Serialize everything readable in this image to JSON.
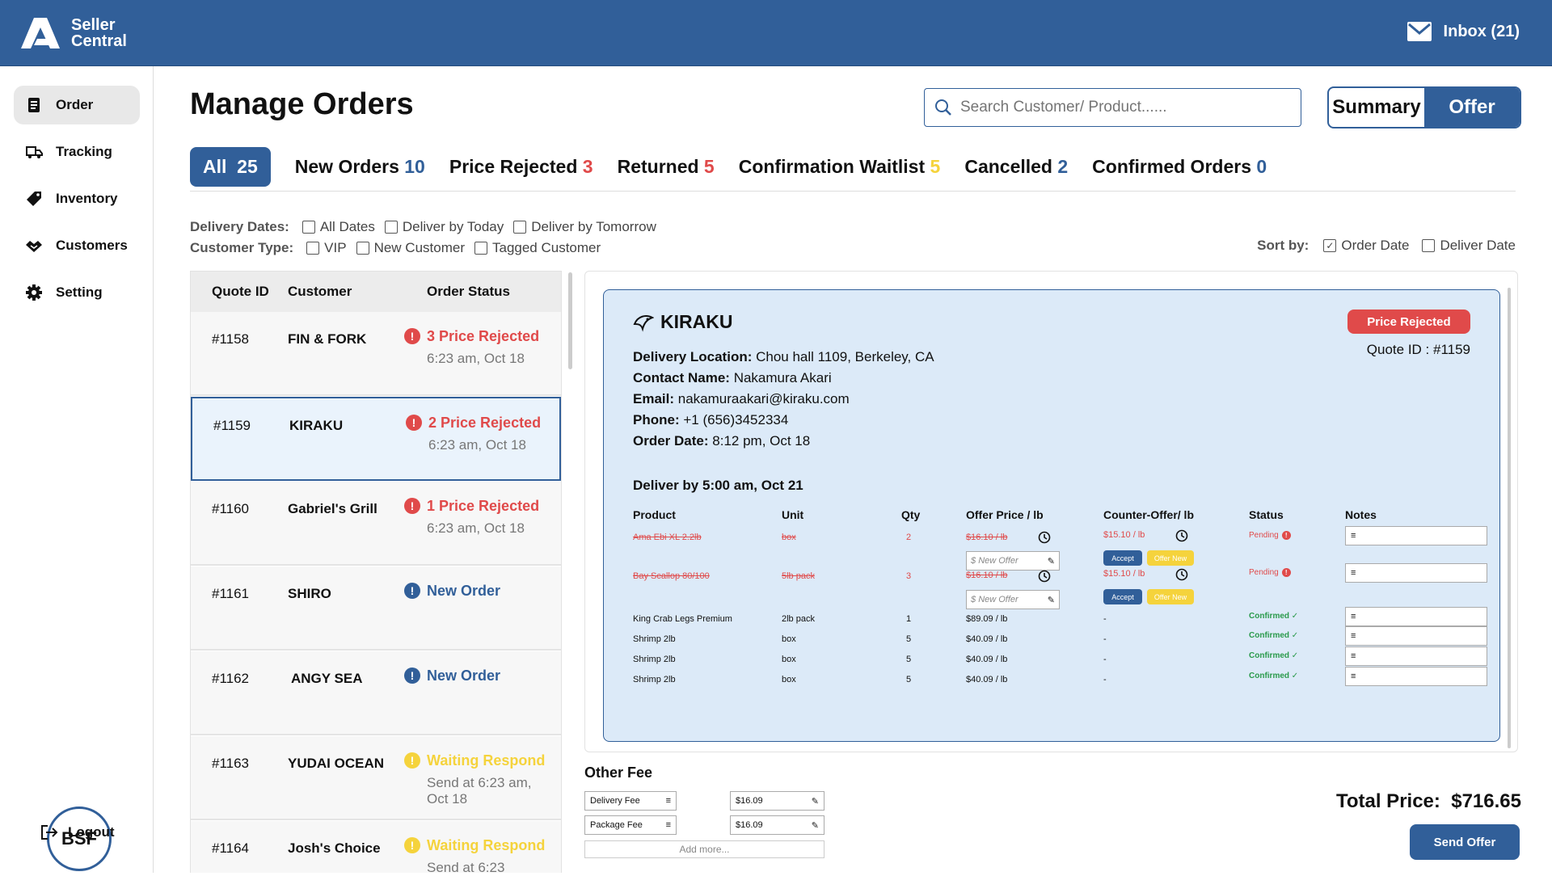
{
  "header": {
    "logo_line1": "Seller",
    "logo_line2": "Central",
    "inbox_label": "Inbox (21)"
  },
  "sidebar": {
    "items": [
      {
        "label": "Order",
        "icon": "document-icon"
      },
      {
        "label": "Tracking",
        "icon": "truck-icon"
      },
      {
        "label": "Inventory",
        "icon": "tag-icon"
      },
      {
        "label": "Customers",
        "icon": "handshake-icon"
      },
      {
        "label": "Setting",
        "icon": "gear-icon"
      }
    ],
    "avatar": "BSF",
    "logout": "Logout"
  },
  "page": {
    "title": "Manage Orders",
    "search_placeholder": "Search Customer/ Product......",
    "seg_summary": "Summary",
    "seg_offer": "Offer"
  },
  "tabs": [
    {
      "label": "All",
      "count": "25",
      "color": "#ffffff"
    },
    {
      "label": "New Orders",
      "count": "10",
      "color": "#315f99"
    },
    {
      "label": "Price Rejected",
      "count": "3",
      "color": "#e04a4a"
    },
    {
      "label": "Returned",
      "count": "5",
      "color": "#e04a4a"
    },
    {
      "label": "Confirmation Waitlist",
      "count": "5",
      "color": "#f5d33c"
    },
    {
      "label": "Cancelled",
      "count": "2",
      "color": "#315f99"
    },
    {
      "label": "Confirmed Orders",
      "count": "0",
      "color": "#315f99"
    }
  ],
  "filters": {
    "delivery_label": "Delivery Dates:",
    "delivery_options": [
      "All Dates",
      "Deliver by Today",
      "Deliver by Tomorrow"
    ],
    "customer_label": "Customer Type:",
    "customer_options": [
      "VIP",
      "New Customer",
      "Tagged Customer"
    ],
    "sort_label": "Sort by:",
    "sort_options": [
      "Order Date",
      "Deliver Date"
    ]
  },
  "list": {
    "headers": [
      "Quote ID",
      "Customer",
      "Order Status"
    ],
    "rows": [
      {
        "id": "#1158",
        "customer": "FIN & FORK",
        "status": "3 Price Rejected",
        "kind": "rejected",
        "time": "6:23 am, Oct 18"
      },
      {
        "id": "#1159",
        "customer": "KIRAKU",
        "status": "2 Price Rejected",
        "kind": "rejected",
        "time": "6:23 am, Oct 18"
      },
      {
        "id": "#1160",
        "customer": "Gabriel's Grill",
        "status": "1 Price Rejected",
        "kind": "rejected",
        "time": "6:23 am, Oct 18"
      },
      {
        "id": "#1161",
        "customer": "SHIRO",
        "status": "New Order",
        "kind": "new",
        "time": ""
      },
      {
        "id": "#1162",
        "customer": "ANGY SEA",
        "status": "New Order",
        "kind": "new",
        "time": ""
      },
      {
        "id": "#1163",
        "customer": "YUDAI OCEAN",
        "status": "Waiting Respond",
        "kind": "waiting",
        "time": "Send at 6:23 am, Oct 18"
      },
      {
        "id": "#1164",
        "customer": "Josh's Choice",
        "status": "Waiting Respond",
        "kind": "waiting",
        "time": "Send at 6:23"
      }
    ]
  },
  "detail": {
    "brand": "KIRAKU",
    "badge": "Price Rejected",
    "quote_id": "Quote ID : #1159",
    "location_label": "Delivery Location:",
    "location": "Chou hall 1109, Berkeley, CA",
    "contact_label": "Contact Name:",
    "contact": "Nakamura Akari",
    "email_label": "Email:",
    "email": "nakamuraakari@kiraku.com",
    "phone_label": "Phone:",
    "phone": "+1 (656)3452334",
    "order_date_label": "Order Date:",
    "order_date": "8:12 pm, Oct 18",
    "deliver_by": "Deliver by 5:00 am, Oct 21",
    "columns": [
      "Product",
      "Unit",
      "Qty",
      "Offer Price / lb",
      "Counter-Offer/ lb",
      "Status",
      "Notes"
    ],
    "rejected_items": [
      {
        "product": "Ama Ebi XL 2.2lb",
        "unit": "box",
        "qty": "2",
        "offer": "$16.10 / lb",
        "counter": "$15.10 / lb",
        "status": "Pending",
        "new_offer_placeholder": "New Offer",
        "accept": "Accept",
        "offer_new": "Offer New"
      },
      {
        "product": "Bay Scallop 80/100",
        "unit": "5lb pack",
        "qty": "3",
        "offer": "$16.10 / lb",
        "counter": "$15.10 / lb",
        "status": "Pending",
        "new_offer_placeholder": "New Offer",
        "accept": "Accept",
        "offer_new": "Offer New"
      }
    ],
    "confirmed_items": [
      {
        "product": "King Crab Legs Premium",
        "unit": "2lb pack",
        "qty": "1",
        "offer": "$89.09 / lb",
        "counter": "-",
        "status": "Confirmed"
      },
      {
        "product": "Shrimp 2lb",
        "unit": "box",
        "qty": "5",
        "offer": "$40.09 / lb",
        "counter": "-",
        "status": "Confirmed"
      },
      {
        "product": "Shrimp 2lb",
        "unit": "box",
        "qty": "5",
        "offer": "$40.09 / lb",
        "counter": "-",
        "status": "Confirmed"
      },
      {
        "product": "Shrimp 2lb",
        "unit": "box",
        "qty": "5",
        "offer": "$40.09 / lb",
        "counter": "-",
        "status": "Confirmed"
      }
    ]
  },
  "fees": {
    "title": "Other Fee",
    "items": [
      {
        "name": "Delivery Fee",
        "value": "$16.09"
      },
      {
        "name": "Package Fee",
        "value": "$16.09"
      }
    ],
    "add_more": "Add more..."
  },
  "footer": {
    "total_label": "Total Price:",
    "total_value": "$716.65",
    "send": "Send Offer"
  }
}
